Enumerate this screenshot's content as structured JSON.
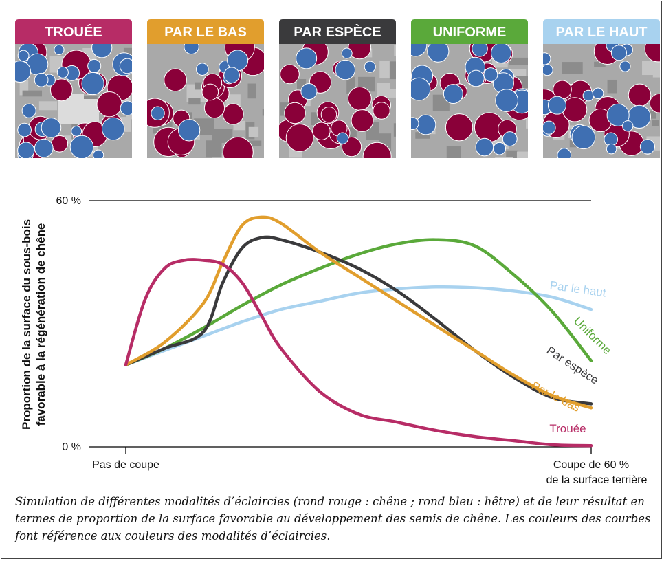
{
  "panels": [
    {
      "label": "TROUÉE",
      "color": "#b72c66",
      "pattern": "trouee"
    },
    {
      "label": "PAR LE BAS",
      "color": "#e19e2d",
      "pattern": "bas"
    },
    {
      "label": "PAR ESPÈCE",
      "color": "#3a3a3c",
      "pattern": "espece"
    },
    {
      "label": "UNIFORME",
      "color": "#5aa93a",
      "pattern": "uniforme"
    },
    {
      "label": "PAR LE HAUT",
      "color": "#a8d2ef",
      "pattern": "haut"
    }
  ],
  "legend_colors": {
    "oak": "#8a0039",
    "beech": "#3f6fb2",
    "ground": "#a9a9a9"
  },
  "chart_data": {
    "type": "line",
    "ylabel": "Proportion de la surface du sous-bois favorable à la régénération de chêne",
    "ylabel_line1": "Proportion de la surface du sous-bois",
    "ylabel_line2": "favorable à la régénération de chêne",
    "y_ticks": [
      "60 %",
      "0 %"
    ],
    "ylim": [
      0,
      60
    ],
    "xlim": [
      0,
      60
    ],
    "x_ticks": [
      {
        "x": 0,
        "lines": [
          "Pas de coupe"
        ]
      },
      {
        "x": 60,
        "lines": [
          "Coupe de 60 %",
          "de la surface terrière"
        ]
      }
    ],
    "series": [
      {
        "name": "Par le haut",
        "color": "#a8d2ef",
        "x": [
          0,
          5,
          10,
          15,
          20,
          25,
          30,
          35,
          40,
          45,
          50,
          55,
          60
        ],
        "y": [
          20,
          23.5,
          27,
          30.5,
          33.5,
          35.5,
          37.5,
          38.5,
          39,
          38.8,
          38,
          36.5,
          33.5
        ]
      },
      {
        "name": "Uniforme",
        "color": "#5aa93a",
        "x": [
          0,
          5,
          10,
          15,
          20,
          25,
          30,
          35,
          40,
          45,
          50,
          55,
          60
        ],
        "y": [
          20,
          24,
          29,
          34.5,
          39.5,
          43.5,
          47,
          49.5,
          50.5,
          49,
          42,
          33,
          21
        ]
      },
      {
        "name": "Par espèce",
        "color": "#3a3a3c",
        "x": [
          0,
          5,
          10,
          12.5,
          15,
          17.5,
          20,
          25,
          30,
          35,
          40,
          45,
          50,
          55,
          60
        ],
        "y": [
          20,
          24,
          28,
          40,
          48.5,
          51,
          50.5,
          47.5,
          43.5,
          38,
          31,
          23.5,
          17,
          12,
          10.5
        ]
      },
      {
        "name": "Par le bas",
        "color": "#e19e2d",
        "x": [
          0,
          5,
          10,
          12.5,
          15,
          17.5,
          20,
          25,
          30,
          35,
          40,
          45,
          50,
          55,
          60
        ],
        "y": [
          20,
          25.5,
          35,
          45,
          54,
          56,
          54.5,
          47.5,
          41.5,
          35.5,
          29.5,
          23.5,
          17.5,
          12.5,
          9.5
        ]
      },
      {
        "name": "Trouée",
        "color": "#b72c66",
        "x": [
          0,
          2.5,
          5,
          7.5,
          10,
          12.5,
          15,
          17.5,
          20,
          25,
          30,
          35,
          40,
          45,
          50,
          55,
          60
        ],
        "y": [
          20,
          36,
          43.5,
          45.5,
          45.5,
          44.5,
          40,
          32,
          24,
          13.5,
          8,
          6,
          4,
          2.5,
          1.5,
          0.5,
          0.3
        ]
      }
    ]
  },
  "caption": "Simulation de différentes modalités d’éclaircies (rond rouge : chêne ; rond bleu : hêtre) et de leur résultat en termes de proportion de la surface favorable au développement des semis de chêne. Les couleurs des courbes font référence aux couleurs des modalités d’éclaircies."
}
